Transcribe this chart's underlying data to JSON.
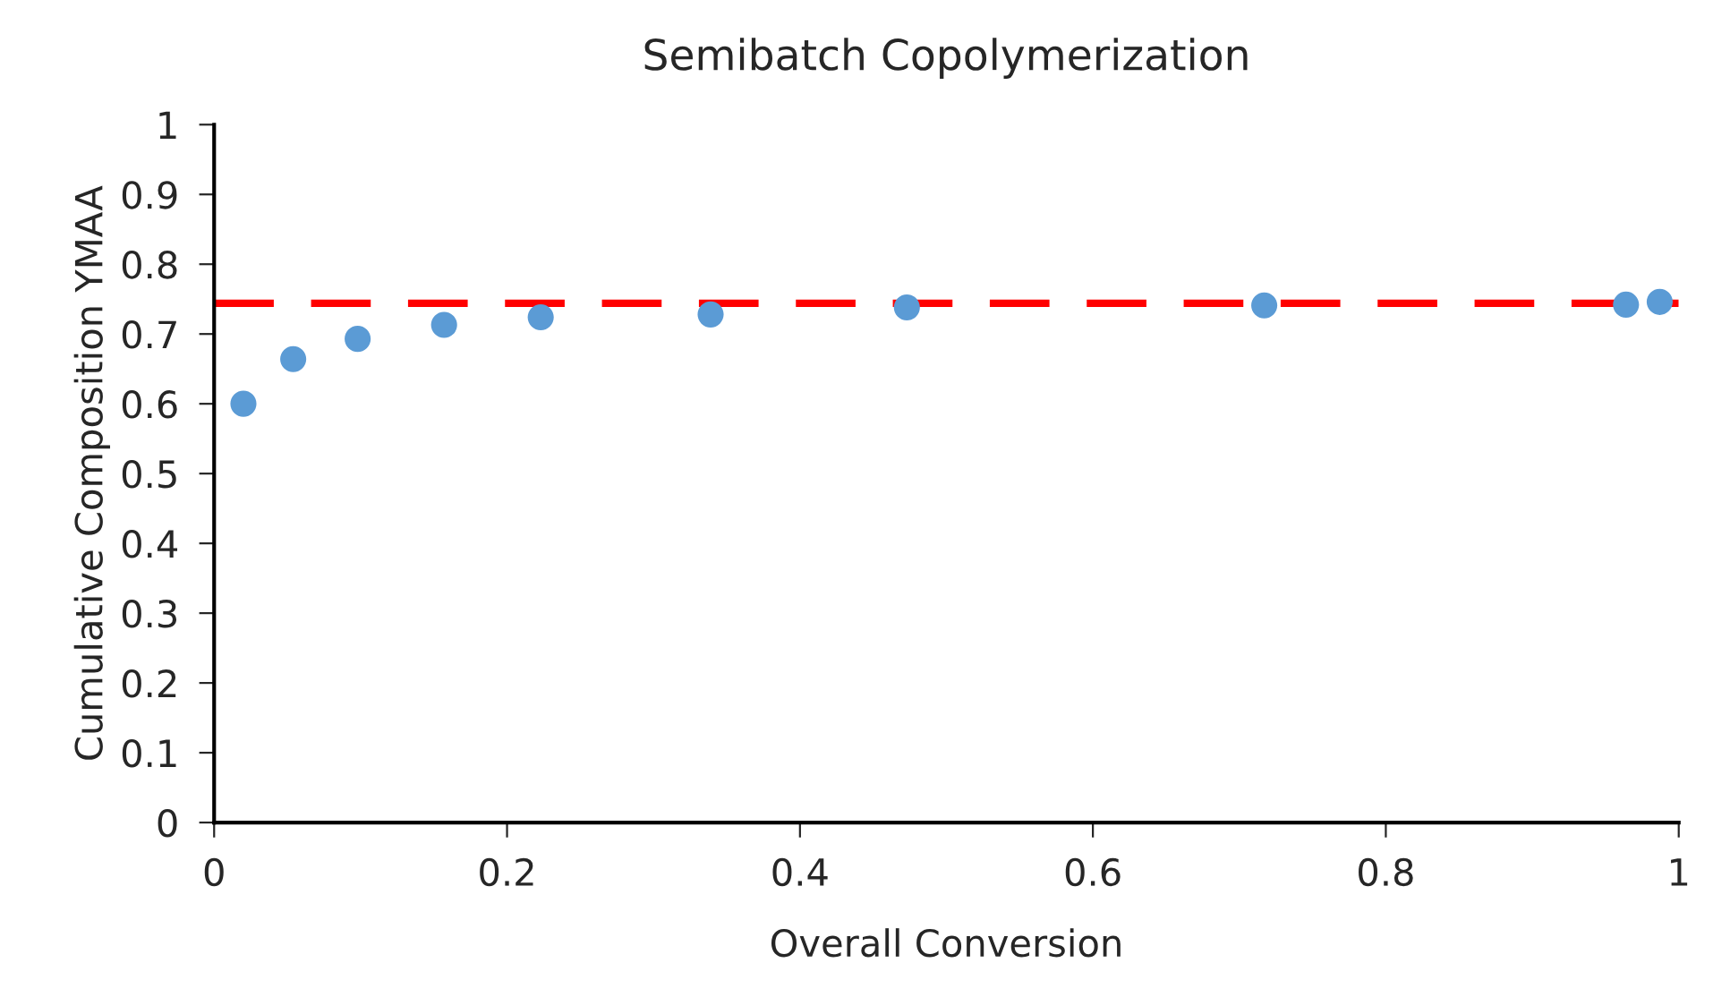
{
  "chart_data": {
    "type": "scatter",
    "title": "Semibatch Copolymerization",
    "xlabel": "Overall Conversion",
    "ylabel": "Cumulative Composition YMAA",
    "x": [
      0.02,
      0.054,
      0.098,
      0.157,
      0.223,
      0.339,
      0.473,
      0.717,
      0.964,
      0.987
    ],
    "series": [
      {
        "color": "#5b9bd5",
        "values": [
          0.6,
          0.664,
          0.693,
          0.713,
          0.724,
          0.728,
          0.738,
          0.741,
          0.742,
          0.746
        ]
      }
    ],
    "ref_lines": [
      {
        "axis": "y",
        "value": 0.744,
        "color": "#ff0000",
        "line_style": "dashed"
      }
    ],
    "xlim": [
      0,
      1
    ],
    "ylim": [
      0,
      1
    ],
    "xticks": [
      0,
      0.2,
      0.4,
      0.6,
      0.8,
      1
    ],
    "yticks": [
      0,
      0.1,
      0.2,
      0.3,
      0.4,
      0.5,
      0.6,
      0.7,
      0.8,
      0.9,
      1
    ],
    "marker": "circle",
    "grid": false,
    "legend": false
  }
}
